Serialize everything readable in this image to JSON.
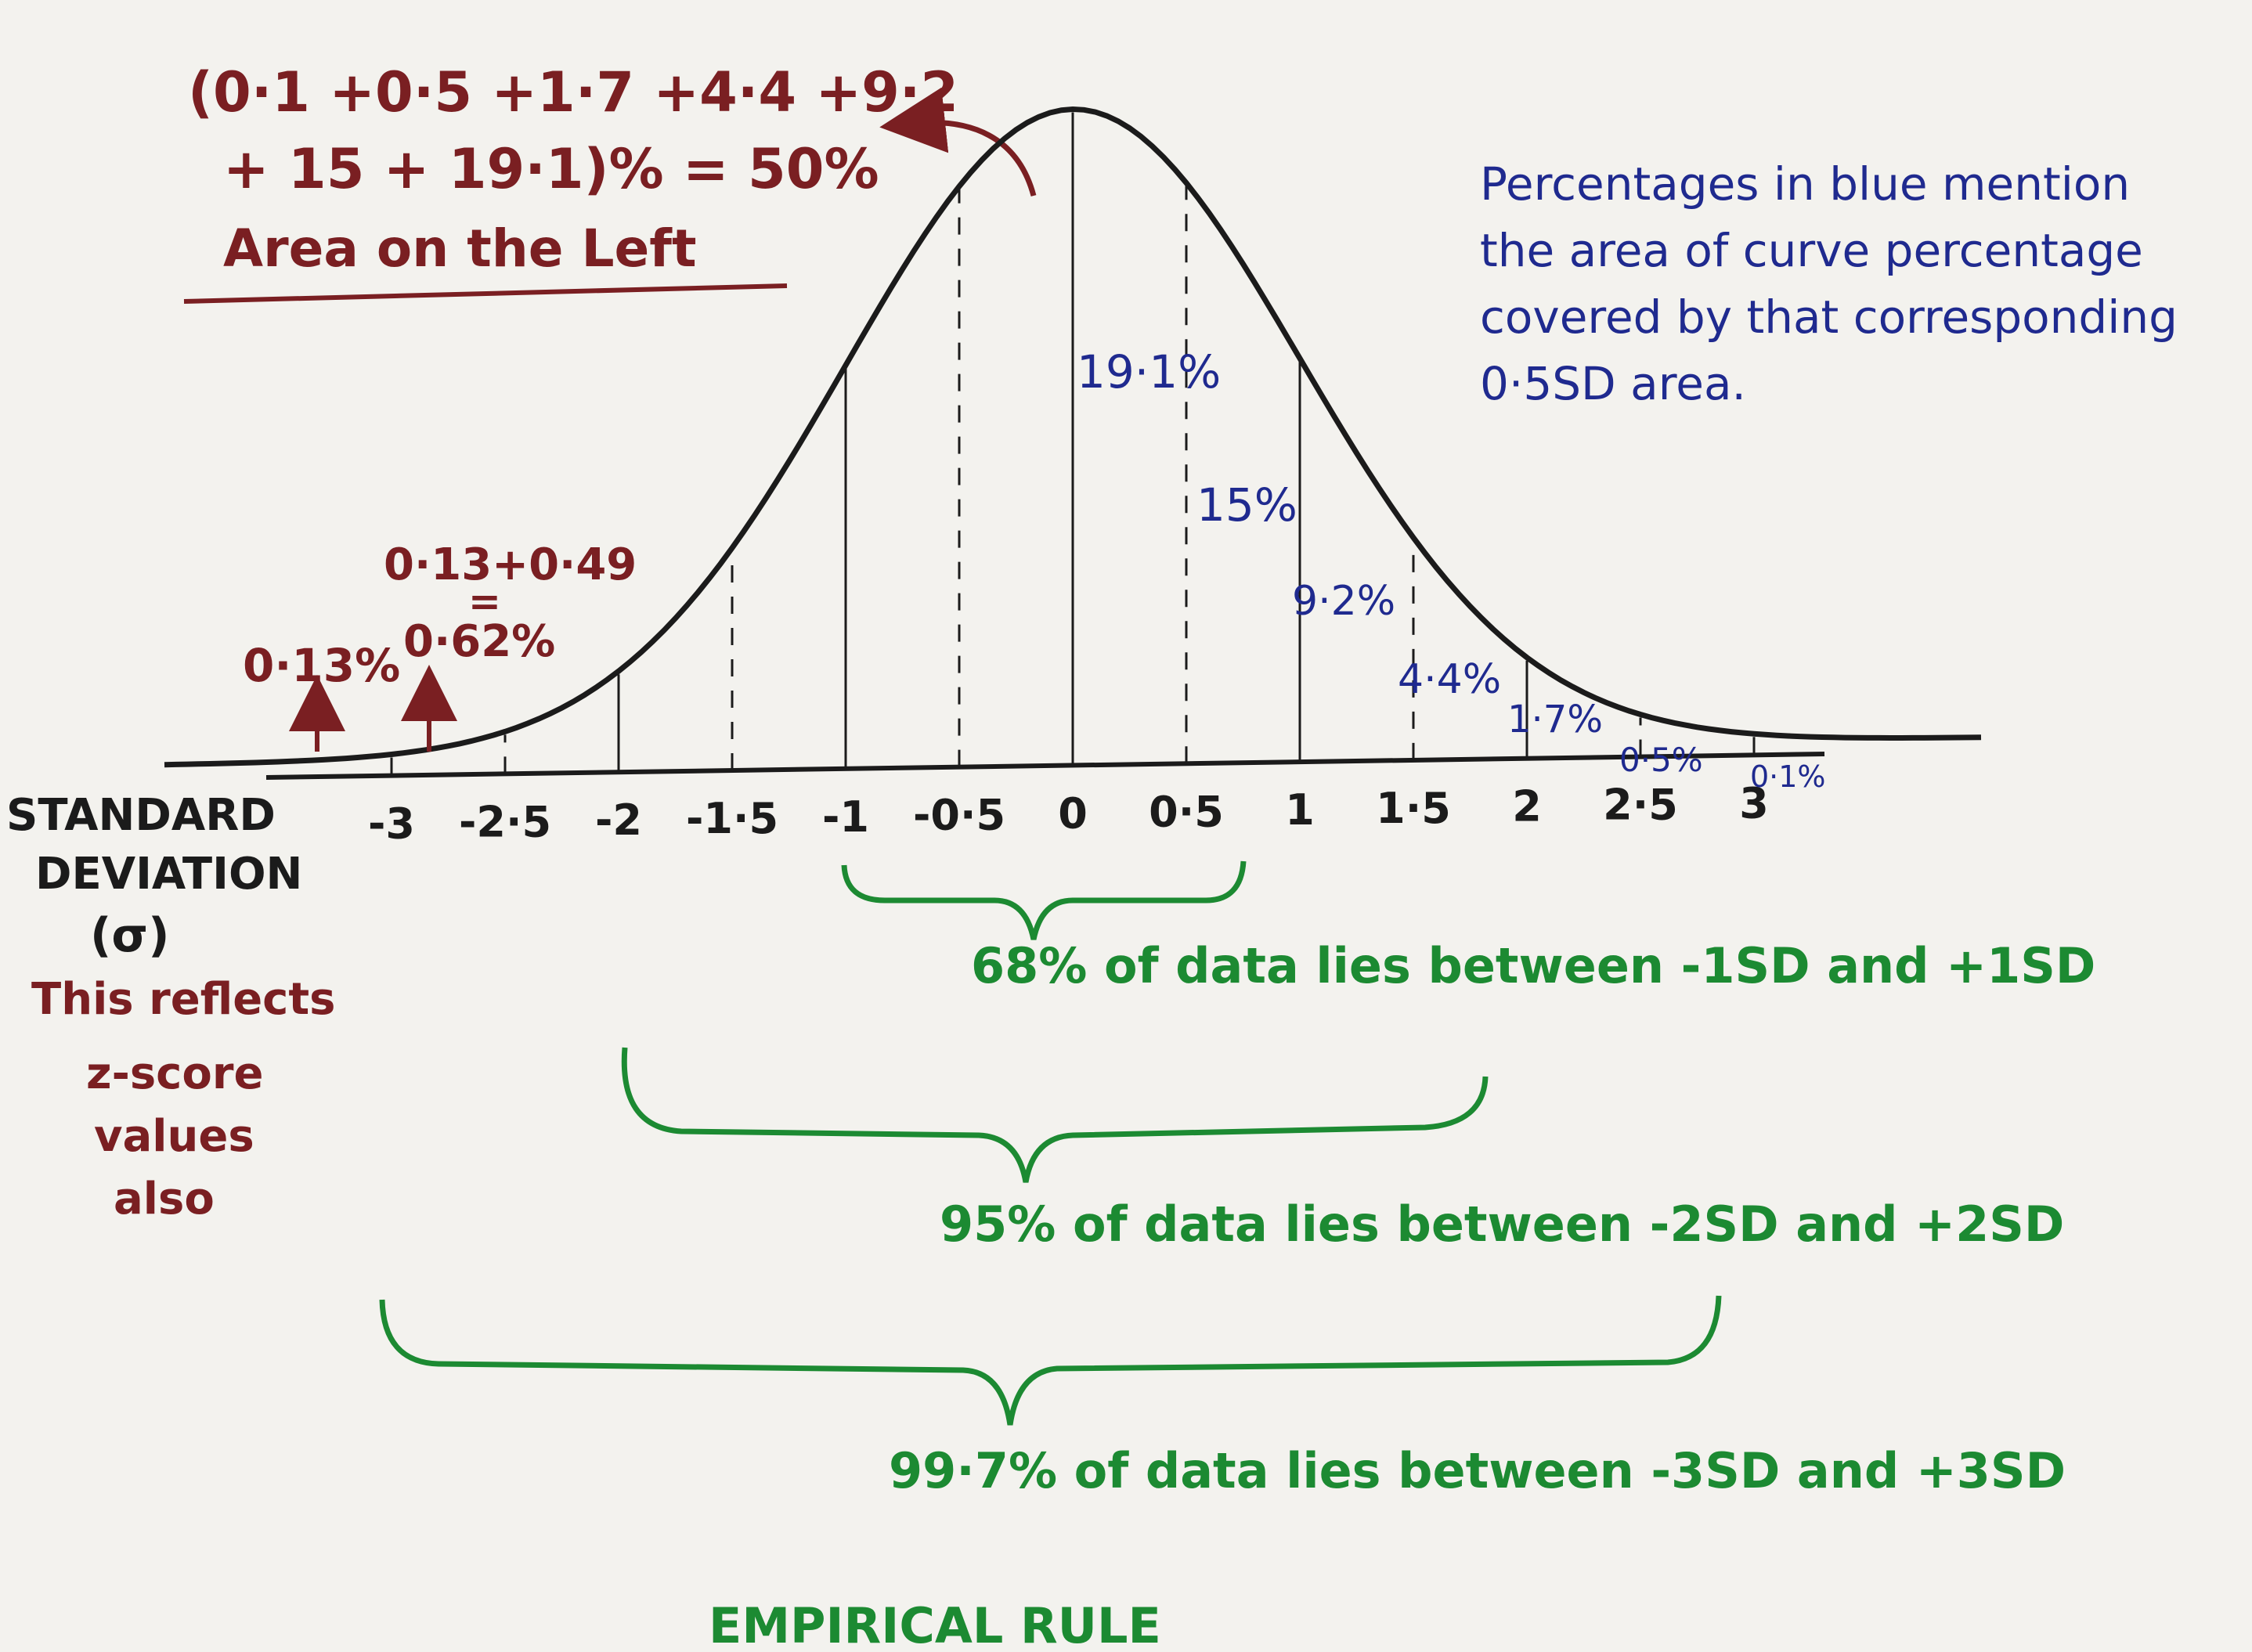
{
  "colors": {
    "paper": "#f3f2ee",
    "ink": "#1b1b1b",
    "maroon": "#7a1f22",
    "blue": "#1f2a8f",
    "green": "#1c8a32"
  },
  "header_note": {
    "line1": "(0·1 +0·5 +1·7 +4·4 +9·2",
    "line2": "+ 15 + 19·1)% = 50%",
    "line3": "Area on the Left"
  },
  "blue_note": {
    "line1": "Percentages in blue mention",
    "line2": "the area of curve percentage",
    "line3": "covered by that corresponding",
    "line4": "0·5SD area."
  },
  "left_notes": {
    "tail": "0·13%",
    "sum_top": "0·13+0·49",
    "sum_eq": "=",
    "sum_result": "0·62%"
  },
  "axis": {
    "title_line1": "STANDARD",
    "title_line2": "DEVIATION",
    "title_line3": "(σ)",
    "note_line1": "This reflects",
    "note_line2": "z-score",
    "note_line3": "values",
    "note_line4": "also",
    "ticks": [
      "-3",
      "-2·5",
      "-2",
      "-1·5",
      "-1",
      "-0·5",
      "0",
      "0·5",
      "1",
      "1·5",
      "2",
      "2·5",
      "3"
    ]
  },
  "band_percentages": {
    "b0": "19·1%",
    "b1": "15%",
    "b2": "9·2%",
    "b3": "4·4%",
    "b4": "1·7%",
    "b5": "0·5%",
    "b6": "0·1%"
  },
  "rules": {
    "r1": "68% of data lies between -1SD and +1SD",
    "r2": "95% of data lies between -2SD and +2SD",
    "r3": "99·7% of data lies between -3SD and +3SD"
  },
  "footer_title": "EMPIRICAL RULE"
}
